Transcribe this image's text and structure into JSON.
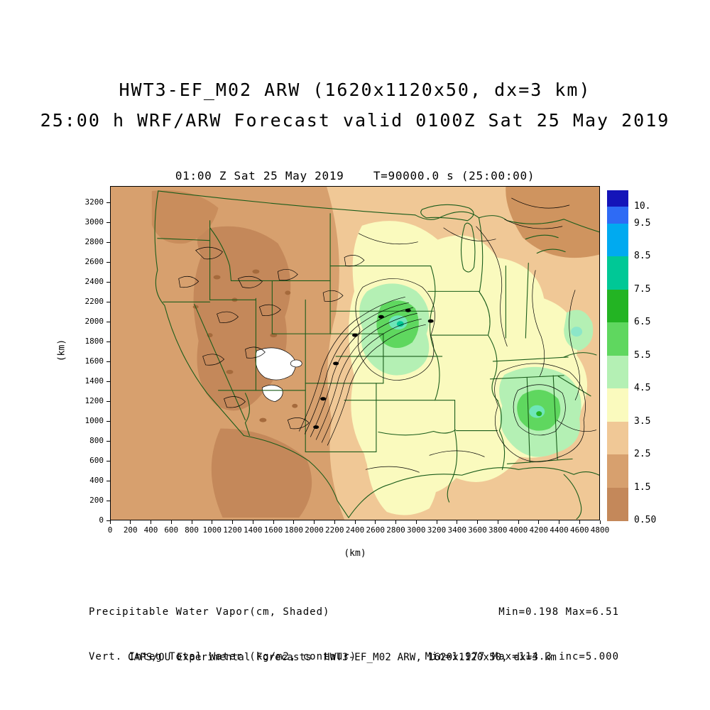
{
  "header": {
    "title_line1": "HWT3-EF_M02 ARW (1620x1120x50, dx=3 km)",
    "title_line2": "25:00 h WRF/ARW Forecast valid 0100Z Sat 25 May 2019"
  },
  "chart_data": {
    "type": "heatmap",
    "title": "01:00 Z Sat 25 May 2019    T=90000.0 s (25:00:00)",
    "xlabel": "(km)",
    "ylabel": "(km)",
    "xlim": [
      0,
      4800
    ],
    "ylim": [
      0,
      3200
    ],
    "grid": false,
    "legend_position": "right-colorbar",
    "x_ticks": [
      0,
      200,
      400,
      600,
      800,
      1000,
      1200,
      1400,
      1600,
      1800,
      2000,
      2200,
      2400,
      2600,
      2800,
      3000,
      3200,
      3400,
      3600,
      3800,
      4000,
      4200,
      4400,
      4600,
      4800
    ],
    "y_ticks": [
      0,
      200,
      400,
      600,
      800,
      1000,
      1200,
      1400,
      1600,
      1800,
      2000,
      2200,
      2400,
      2600,
      2800,
      3000,
      3200
    ],
    "shaded_field": {
      "name": "Precipitable Water Vapor",
      "units": "cm",
      "min": 0.198,
      "max": 6.51
    },
    "contour_field": {
      "name": "Vert. Integ Total Water",
      "units": "kg/m2",
      "min": 1.977,
      "max": 114.3,
      "interval": 5.0
    },
    "colorbar": {
      "labels": [
        {
          "value": 10.0,
          "text": "10."
        },
        {
          "value": 9.5,
          "text": "9.5"
        },
        {
          "value": 8.5,
          "text": "8.5"
        },
        {
          "value": 7.5,
          "text": "7.5"
        },
        {
          "value": 6.5,
          "text": "6.5"
        },
        {
          "value": 5.5,
          "text": "5.5"
        },
        {
          "value": 4.5,
          "text": "4.5"
        },
        {
          "value": 3.5,
          "text": "3.5"
        },
        {
          "value": 2.5,
          "text": "2.5"
        },
        {
          "value": 1.5,
          "text": "1.5"
        },
        {
          "value": 0.5,
          "text": "0.50"
        }
      ],
      "segments": [
        {
          "from": 10.0,
          "to": 10.5,
          "color": "#1414b9"
        },
        {
          "from": 9.5,
          "to": 10.0,
          "color": "#2e6bf5"
        },
        {
          "from": 8.5,
          "to": 9.5,
          "color": "#00aaf0"
        },
        {
          "from": 7.5,
          "to": 8.5,
          "color": "#00c896"
        },
        {
          "from": 6.5,
          "to": 7.5,
          "color": "#23b423"
        },
        {
          "from": 5.5,
          "to": 6.5,
          "color": "#5fd75f"
        },
        {
          "from": 4.5,
          "to": 5.5,
          "color": "#b4f0b4"
        },
        {
          "from": 3.5,
          "to": 4.5,
          "color": "#fafabe"
        },
        {
          "from": 2.5,
          "to": 3.5,
          "color": "#f0c896"
        },
        {
          "from": 1.5,
          "to": 2.5,
          "color": "#d7a06e"
        },
        {
          "from": 0.5,
          "to": 1.5,
          "color": "#c4885a"
        }
      ]
    }
  },
  "legend": {
    "shaded_label": "Precipitable Water Vapor(cm, Shaded)",
    "contour_label": "Vert. Integ Total Water (kg/m2, contour)",
    "shaded_minmax": "Min=0.198 Max=6.51",
    "contour_minmax": "Min=1.977 Max=114.3 inc=5.000"
  },
  "footer": {
    "credit": "CAPS/OU Experimental Forecasts  HWT3-EF_M02 ARW, 1620x1120x50, dx=3 km"
  }
}
